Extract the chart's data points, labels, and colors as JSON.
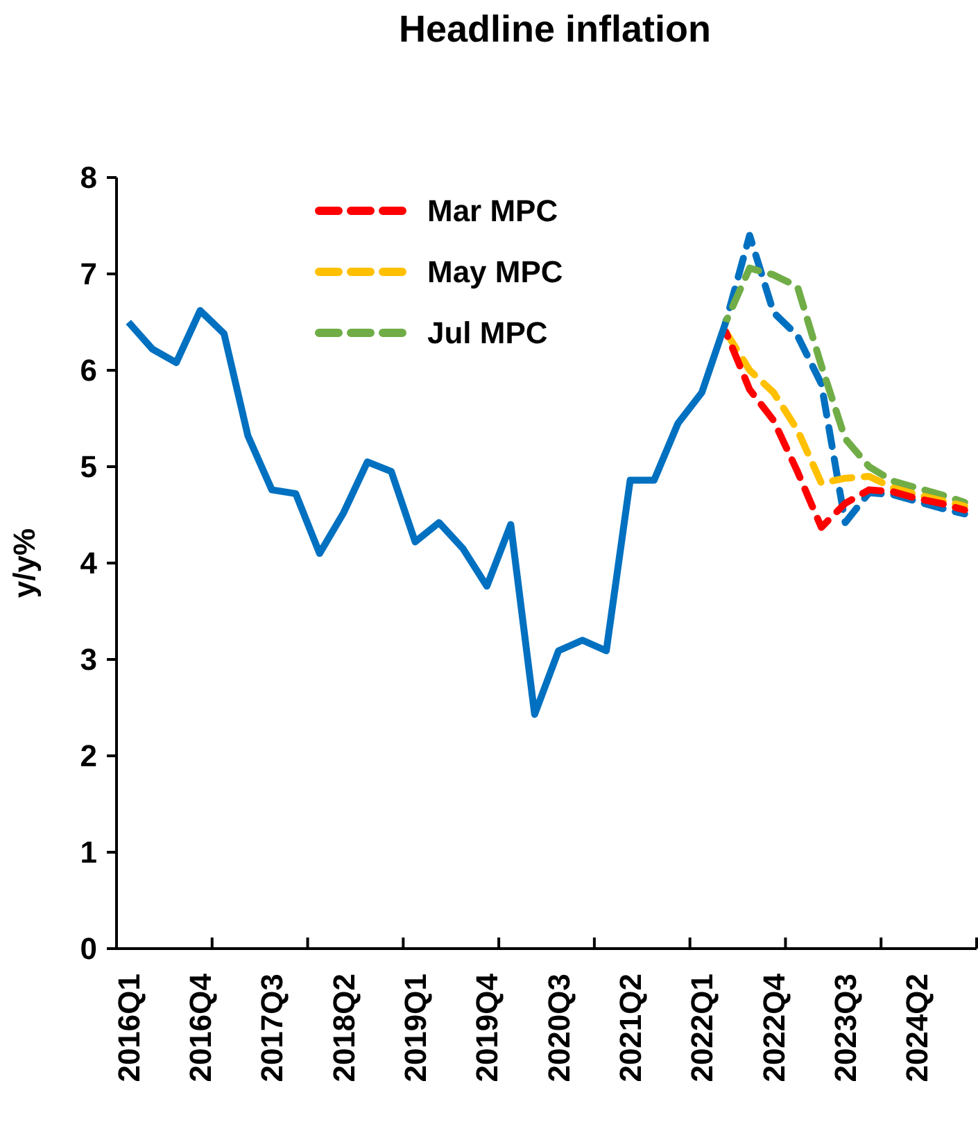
{
  "chart_data": {
    "type": "line",
    "title": "Headline inflation",
    "ylabel": "y/y%",
    "categories": [
      "2016Q1",
      null,
      null,
      "2016Q4",
      null,
      null,
      "2017Q3",
      null,
      null,
      "2018Q2",
      null,
      null,
      "2019Q1",
      null,
      null,
      "2019Q4",
      null,
      null,
      "2020Q3",
      null,
      null,
      "2021Q2",
      null,
      null,
      "2022Q1",
      null,
      null,
      "2022Q4",
      null,
      null,
      "2023Q3",
      null,
      null,
      "2024Q2",
      null,
      null
    ],
    "ylim": [
      0,
      8
    ],
    "yticks": [
      0,
      1,
      2,
      3,
      4,
      5,
      6,
      7,
      8
    ],
    "grid": false,
    "legend": "top",
    "marker": "none",
    "series": [
      {
        "color": "#0070c0",
        "line_style": "solid",
        "values": [
          6.5,
          6.22,
          6.08,
          6.62,
          6.38,
          5.32,
          4.76,
          4.72,
          4.1,
          4.52,
          5.05,
          4.95,
          4.22,
          4.42,
          4.15,
          3.76,
          4.4,
          2.43,
          3.09,
          3.2,
          3.09,
          4.86,
          4.86,
          5.45,
          5.77,
          6.5,
          null,
          null,
          null,
          null,
          null,
          null,
          null,
          null,
          null,
          null
        ]
      },
      {
        "name": "Mar MPC",
        "color": "#ff0000",
        "line_style": "dashed",
        "values": [
          null,
          null,
          null,
          null,
          null,
          null,
          null,
          null,
          null,
          null,
          null,
          null,
          null,
          null,
          null,
          null,
          null,
          null,
          null,
          null,
          null,
          null,
          null,
          null,
          null,
          6.4,
          5.8,
          5.48,
          4.95,
          4.37,
          4.62,
          4.76,
          4.74,
          4.67,
          4.62,
          4.55
        ]
      },
      {
        "name": "May MPC",
        "color": "#ffc000",
        "line_style": "dashed",
        "values": [
          null,
          null,
          null,
          null,
          null,
          null,
          null,
          null,
          null,
          null,
          null,
          null,
          null,
          null,
          null,
          null,
          null,
          null,
          null,
          null,
          null,
          null,
          null,
          null,
          null,
          6.4,
          6.0,
          5.77,
          5.38,
          4.83,
          4.88,
          4.9,
          4.78,
          4.71,
          4.65,
          4.59
        ]
      },
      {
        "name": "Jul MPC",
        "color": "#70ad47",
        "line_style": "dashed",
        "values": [
          null,
          null,
          null,
          null,
          null,
          null,
          null,
          null,
          null,
          null,
          null,
          null,
          null,
          null,
          null,
          null,
          null,
          null,
          null,
          null,
          null,
          null,
          null,
          null,
          null,
          6.5,
          7.06,
          6.99,
          6.87,
          6.05,
          5.29,
          5.0,
          4.85,
          4.78,
          4.71,
          4.63
        ]
      },
      {
        "color": "#0070c0",
        "line_style": "dashed",
        "values": [
          null,
          null,
          null,
          null,
          null,
          null,
          null,
          null,
          null,
          null,
          null,
          null,
          null,
          null,
          null,
          null,
          null,
          null,
          null,
          null,
          null,
          null,
          null,
          null,
          null,
          6.5,
          7.4,
          6.6,
          6.36,
          5.86,
          4.42,
          4.73,
          4.71,
          4.64,
          4.57,
          4.51
        ]
      }
    ]
  }
}
